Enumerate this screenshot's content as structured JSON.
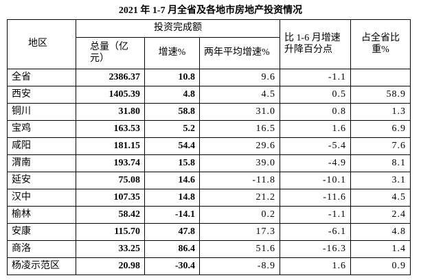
{
  "title": "2021 年 1-7 月全省及各地市房地产投资情况",
  "table": {
    "group_header": "投资完成额",
    "columns": [
      "地区",
      "总量（亿元）",
      "增速%",
      "两年平均增速%",
      "比 1-6 月增速升降百分点",
      "占全省比重%"
    ],
    "rows": [
      [
        "全省",
        "2386.37",
        "10.8",
        "9.6",
        "-1.1",
        null
      ],
      [
        "西安",
        "1405.39",
        "4.8",
        "4.5",
        "0.5",
        "58.9"
      ],
      [
        "铜川",
        "31.80",
        "58.8",
        "31.0",
        "0.8",
        "1.3"
      ],
      [
        "宝鸡",
        "163.53",
        "5.2",
        "16.5",
        "1.6",
        "6.9"
      ],
      [
        "咸阳",
        "181.15",
        "54.4",
        "29.6",
        "-5.4",
        "7.6"
      ],
      [
        "渭南",
        "193.74",
        "15.8",
        "39.0",
        "-4.9",
        "8.1"
      ],
      [
        "延安",
        "75.08",
        "14.6",
        "-11.8",
        "-10.1",
        "3.1"
      ],
      [
        "汉中",
        "107.35",
        "14.8",
        "21.2",
        "-11.6",
        "4.5"
      ],
      [
        "榆林",
        "58.42",
        "-14.1",
        "0.2",
        "-1.1",
        "2.4"
      ],
      [
        "安康",
        "115.70",
        "47.8",
        "17.3",
        "-6.1",
        "4.8"
      ],
      [
        "商洛",
        "33.25",
        "86.4",
        "51.6",
        "-16.3",
        "1.4"
      ],
      [
        "杨凌示范区",
        "20.98",
        "-30.4",
        "-8.9",
        "1.6",
        "0.9"
      ]
    ]
  }
}
